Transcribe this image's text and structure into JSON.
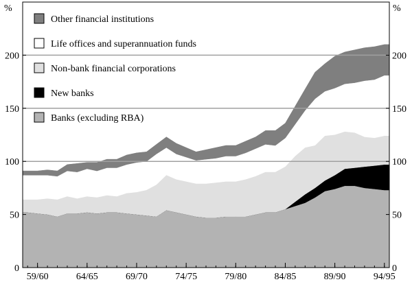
{
  "chart_data": {
    "type": "area",
    "stacked": true,
    "title": "",
    "xlabel": "",
    "ylabel": "%",
    "ylabel_right": "%",
    "ylim": [
      0,
      250
    ],
    "yticks": [
      0,
      50,
      100,
      150,
      200
    ],
    "x_tick_labels": [
      "59/60",
      "64/65",
      "69/70",
      "74/75",
      "79/80",
      "84/85",
      "89/90",
      "94/95"
    ],
    "x_tick_years": [
      1960,
      1965,
      1970,
      1975,
      1980,
      1985,
      1990,
      1995
    ],
    "grid": {
      "horizontal": true,
      "values": [
        100,
        150,
        200
      ]
    },
    "legend_position": "top-left",
    "x": [
      1959,
      1960,
      1961,
      1962,
      1963,
      1964,
      1965,
      1966,
      1967,
      1968,
      1969,
      1970,
      1971,
      1972,
      1973,
      1974,
      1975,
      1976,
      1977,
      1978,
      1979,
      1980,
      1981,
      1982,
      1983,
      1984,
      1985,
      1986,
      1987,
      1988,
      1989,
      1990,
      1991,
      1992,
      1993,
      1994,
      1995
    ],
    "series": [
      {
        "name": "Banks (excluding RBA)",
        "color": "#b3b3b3",
        "values": [
          52,
          51,
          50,
          48,
          51,
          51,
          52,
          51,
          52,
          52,
          51,
          50,
          49,
          48,
          54,
          52,
          50,
          48,
          47,
          47,
          48,
          48,
          48,
          50,
          52,
          52,
          55,
          58,
          61,
          66,
          72,
          74,
          77,
          77,
          75,
          74,
          73
        ]
      },
      {
        "name": "New banks",
        "color": "#000000",
        "values": [
          0,
          0,
          0,
          0,
          0,
          0,
          0,
          0,
          0,
          0,
          0,
          0,
          0,
          0,
          0,
          0,
          0,
          0,
          0,
          0,
          0,
          0,
          0,
          0,
          0,
          0,
          0,
          4,
          8,
          9,
          10,
          13,
          16,
          17,
          20,
          22,
          24
        ]
      },
      {
        "name": "Non-bank financial corporations",
        "color": "#e0e0e0",
        "values": [
          12,
          13,
          15,
          16,
          16,
          14,
          15,
          15,
          16,
          15,
          19,
          21,
          24,
          30,
          33,
          31,
          31,
          31,
          32,
          33,
          33,
          33,
          35,
          36,
          38,
          38,
          40,
          43,
          44,
          40,
          42,
          38,
          35,
          33,
          28,
          26,
          27
        ]
      },
      {
        "name": "Life offices and superannuation funds",
        "color": "#ffffff",
        "values": [
          23,
          23,
          22,
          22,
          24,
          25,
          26,
          25,
          26,
          27,
          27,
          28,
          27,
          29,
          26,
          24,
          23,
          22,
          23,
          23,
          24,
          24,
          25,
          26,
          26,
          25,
          27,
          30,
          35,
          44,
          42,
          44,
          45,
          47,
          53,
          55,
          57
        ]
      },
      {
        "name": "Other financial institutions",
        "color": "#7f7f7f",
        "values": [
          4,
          4,
          5,
          5,
          6,
          8,
          6,
          8,
          8,
          8,
          9,
          9,
          9,
          9,
          10,
          10,
          9,
          8,
          9,
          10,
          10,
          10,
          11,
          11,
          13,
          14,
          14,
          17,
          20,
          25,
          26,
          30,
          30,
          31,
          31,
          31,
          29
        ]
      }
    ]
  }
}
